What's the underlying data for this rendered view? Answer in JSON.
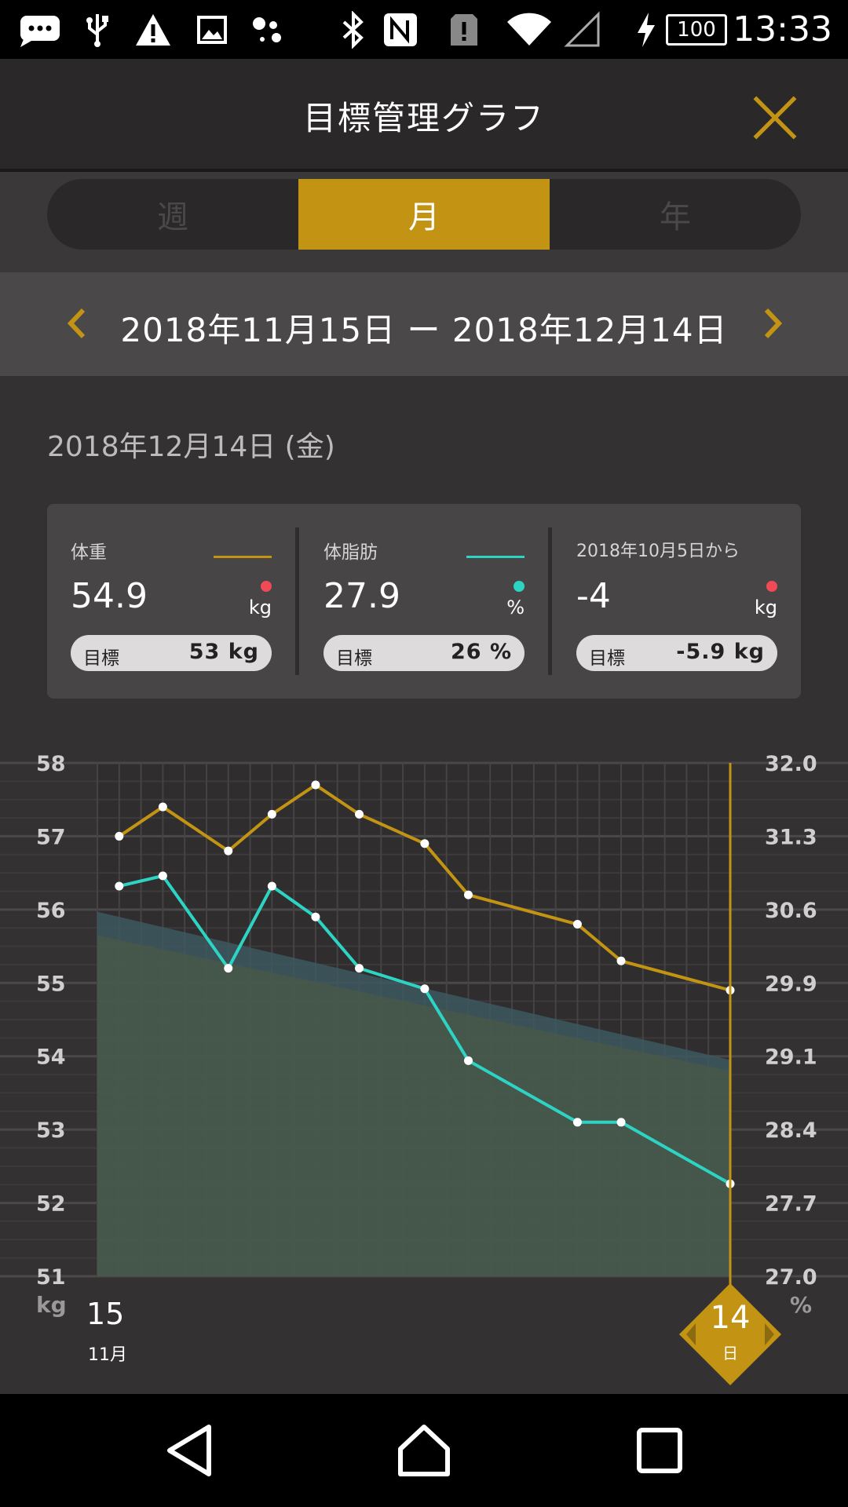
{
  "status_bar": {
    "time": "13:33",
    "battery": "100",
    "icons": [
      "message-icon",
      "usb-icon",
      "warning-icon",
      "image-icon",
      "assistant-icon",
      "bluetooth-icon",
      "nfc-icon",
      "sim-alert-icon",
      "wifi-icon",
      "signal-icon",
      "charging-icon",
      "battery-icon"
    ]
  },
  "header": {
    "title": "目標管理グラフ",
    "close_icon": "close-icon"
  },
  "tabs": [
    {
      "label": "週",
      "active": false
    },
    {
      "label": "月",
      "active": true
    },
    {
      "label": "年",
      "active": false
    }
  ],
  "range": {
    "text": "2018年11月15日 ー 2018年12月14日",
    "prev_icon": "chevron-left-icon",
    "next_icon": "chevron-right-icon"
  },
  "selected_date": "2018年12月14日 (金)",
  "summary": [
    {
      "label": "体重",
      "value": "54.9",
      "unit": "kg",
      "target_label": "目標",
      "target_value": "53 kg",
      "line_color": "#c39414",
      "dot_color": "#ef4a55"
    },
    {
      "label": "体脂肪",
      "value": "27.9",
      "unit": "%",
      "target_label": "目標",
      "target_value": "26 %",
      "line_color": "#2dd4c4",
      "dot_color": "#2dd4c4"
    },
    {
      "label": "2018年10月5日から",
      "value": "-4",
      "unit": "kg",
      "target_label": "目標",
      "target_value": "-5.9 kg",
      "line_color": "",
      "dot_color": "#ef4a55"
    }
  ],
  "chart_labels": {
    "left_unit": "kg",
    "right_unit": "%",
    "start_day": "15",
    "start_month": "11月",
    "end_day": "14",
    "end_suffix": "日"
  },
  "chart_data": {
    "type": "line",
    "x": [
      "11/15",
      "11/16",
      "11/17",
      "11/18",
      "11/19",
      "11/20",
      "11/21",
      "11/22",
      "11/23",
      "11/24",
      "11/25",
      "11/26",
      "11/27",
      "11/28",
      "11/29",
      "11/30",
      "12/1",
      "12/2",
      "12/3",
      "12/4",
      "12/5",
      "12/6",
      "12/7",
      "12/8",
      "12/9",
      "12/10",
      "12/11",
      "12/12",
      "12/13",
      "12/14"
    ],
    "yaxis_left": {
      "unit": "kg",
      "ticks": [
        "58",
        "57",
        "56",
        "55",
        "54",
        "53",
        "52",
        "51"
      ],
      "range": [
        51,
        58
      ]
    },
    "yaxis_right": {
      "unit": "%",
      "ticks": [
        "32.0",
        "31.3",
        "30.6",
        "29.9",
        "29.1",
        "28.4",
        "27.7",
        "27.0"
      ],
      "range": [
        27.0,
        32.0
      ]
    },
    "series": [
      {
        "axis": "left",
        "color": "#c39414",
        "points": [
          [
            1,
            57.0
          ],
          [
            3,
            57.4
          ],
          [
            6,
            56.8
          ],
          [
            8,
            57.3
          ],
          [
            10,
            57.7
          ],
          [
            12,
            57.3
          ],
          [
            15,
            56.9
          ],
          [
            17,
            56.2
          ],
          [
            22,
            55.8
          ],
          [
            24,
            55.3
          ],
          [
            29,
            54.9
          ]
        ]
      },
      {
        "axis": "right",
        "color": "#2dd4c4",
        "points": [
          [
            1,
            30.8
          ],
          [
            3,
            30.9
          ],
          [
            6,
            30.0
          ],
          [
            8,
            30.8
          ],
          [
            10,
            30.5
          ],
          [
            12,
            30.0
          ],
          [
            15,
            29.8
          ],
          [
            17,
            29.1
          ],
          [
            22,
            28.5
          ],
          [
            24,
            28.5
          ],
          [
            29,
            27.9
          ]
        ]
      },
      {
        "axis": "left",
        "type": "area",
        "color": "#3d5860",
        "points": [
          [
            0,
            55.97
          ],
          [
            29,
            53.95
          ]
        ]
      },
      {
        "axis": "left",
        "type": "area",
        "color": "#4a5a47",
        "points": [
          [
            0,
            55.65
          ],
          [
            29,
            53.8
          ]
        ]
      }
    ],
    "grid": true,
    "selected_index": 29
  }
}
